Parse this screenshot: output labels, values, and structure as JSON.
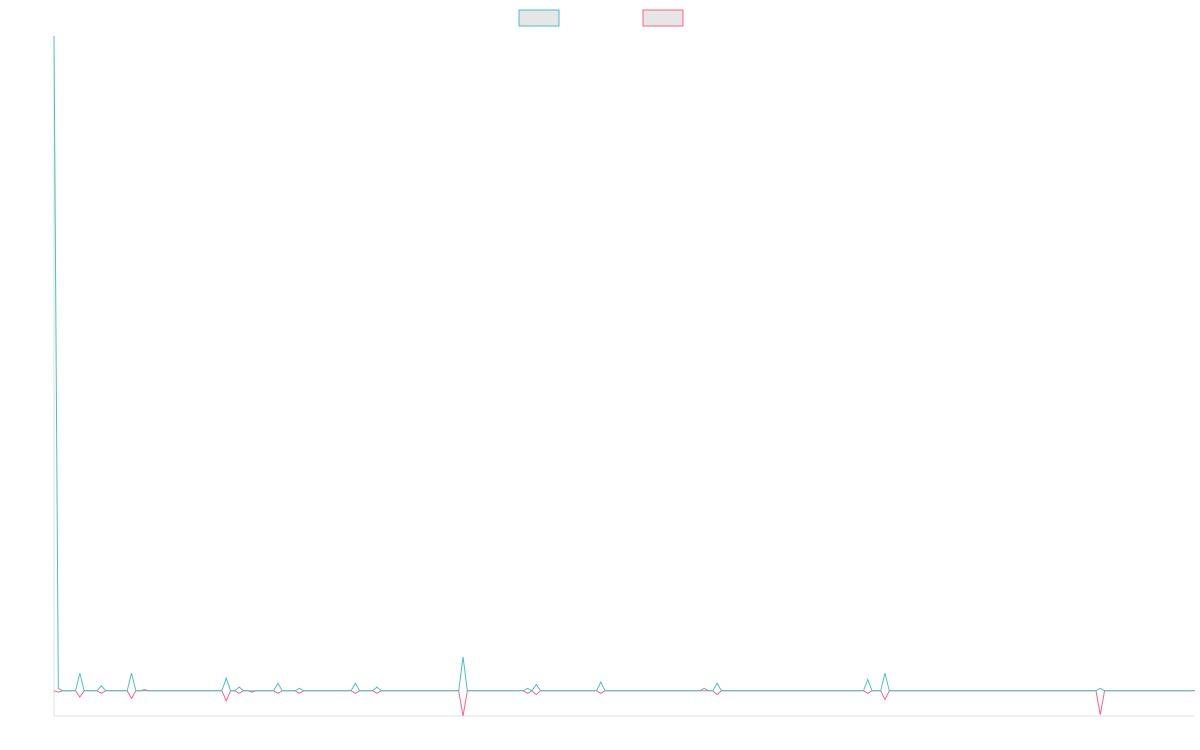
{
  "chart_data": {
    "type": "line",
    "x": [
      0,
      1,
      2,
      5,
      6,
      7,
      10,
      11,
      12,
      17,
      18,
      19,
      20,
      21,
      22,
      39,
      40,
      41,
      42,
      43,
      44,
      45,
      46,
      47,
      51,
      52,
      53,
      56,
      57,
      58,
      69,
      70,
      71,
      74,
      75,
      76,
      94,
      95,
      96,
      109,
      110,
      111,
      112,
      113,
      126,
      127,
      128,
      150,
      151,
      152,
      153,
      154,
      155,
      188,
      189,
      190,
      192,
      193,
      194,
      242,
      243,
      244,
      265
    ],
    "series": [
      {
        "color": "#4bc0c0",
        "values": [
          26,
          0.1,
          0,
          0,
          0.7,
          0,
          0,
          0.2,
          0,
          0,
          0.7,
          0,
          0,
          0.05,
          0,
          0,
          0.5,
          0,
          0,
          0.15,
          0,
          0,
          0,
          0,
          0,
          0.3,
          0,
          0,
          0.1,
          0,
          0,
          0.3,
          0,
          0,
          0.15,
          0,
          0,
          1.35,
          0,
          0,
          0.1,
          0,
          0.25,
          0,
          0,
          0.35,
          0,
          0,
          0.1,
          0,
          0,
          0.3,
          0,
          0,
          0.45,
          0,
          0,
          0.7,
          0,
          0,
          0.1,
          0,
          0
        ]
      },
      {
        "color": "#ff6384",
        "values": [
          0,
          -0.05,
          0,
          0,
          -0.25,
          0,
          0,
          -0.1,
          0,
          0,
          -0.3,
          0,
          0,
          0,
          0,
          0,
          -0.4,
          0,
          0,
          -0.1,
          0,
          0,
          -0.05,
          0,
          0,
          -0.1,
          0,
          0,
          -0.1,
          0,
          0,
          -0.1,
          0,
          0,
          -0.1,
          0,
          0,
          -1.0,
          0,
          0,
          -0.1,
          0,
          -0.15,
          0,
          0,
          -0.1,
          0,
          0,
          0,
          0,
          0,
          -0.15,
          0,
          0,
          -0.1,
          0,
          0,
          -0.35,
          0,
          0,
          -0.95,
          0,
          0
        ]
      }
    ],
    "xlim": [
      0,
      265
    ],
    "ylim": [
      -1,
      26
    ],
    "grid": false
  }
}
